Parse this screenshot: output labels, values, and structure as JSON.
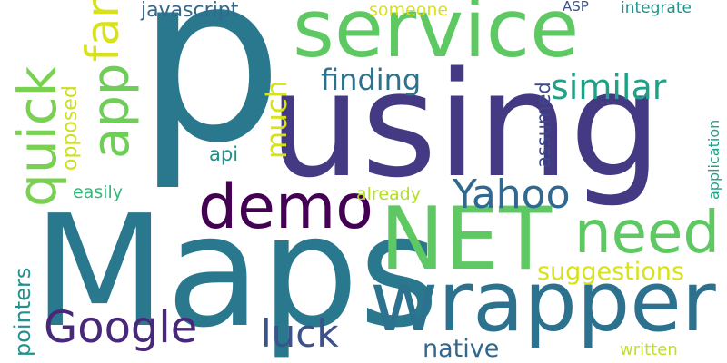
{
  "wordcloud": {
    "background": "#ffffff",
    "words": [
      {
        "text": "p",
        "color": "#2a788e"
      },
      {
        "text": "using",
        "color": "#443a83"
      },
      {
        "text": "Maps",
        "color": "#2a788e"
      },
      {
        "text": "service",
        "color": "#5ec962"
      },
      {
        "text": "NET",
        "color": "#5ec962"
      },
      {
        "text": "wrapper",
        "color": "#2c728e"
      },
      {
        "text": "demo",
        "color": "#440154"
      },
      {
        "text": "need",
        "color": "#5ec962"
      },
      {
        "text": "Yahoo",
        "color": "#31688e"
      },
      {
        "text": "Google",
        "color": "#482878"
      },
      {
        "text": "luck",
        "color": "#3b528b"
      },
      {
        "text": "similar",
        "color": "#1fa187"
      },
      {
        "text": "suggestions",
        "color": "#d8e219"
      },
      {
        "text": "native",
        "color": "#31688e"
      },
      {
        "text": "finding",
        "color": "#2c728e"
      },
      {
        "text": "javascript",
        "color": "#31688e"
      },
      {
        "text": "someone",
        "color": "#d8e219"
      },
      {
        "text": "ASP",
        "color": "#3b528b"
      },
      {
        "text": "integrate",
        "color": "#21918c"
      },
      {
        "text": "api",
        "color": "#21918c"
      },
      {
        "text": "easily",
        "color": "#35b779"
      },
      {
        "text": "already",
        "color": "#b5de2b"
      },
      {
        "text": "written",
        "color": "#c2df23"
      },
      {
        "text": "quick",
        "color": "#7ad151"
      },
      {
        "text": "app",
        "color": "#6ece58"
      },
      {
        "text": "far",
        "color": "#d8e219"
      },
      {
        "text": "opposed",
        "color": "#cddf1f"
      },
      {
        "text": "much",
        "color": "#d8e219"
      },
      {
        "text": "pointers",
        "color": "#21918c"
      },
      {
        "text": "assumed",
        "color": "#3e4989"
      },
      {
        "text": "application",
        "color": "#1fa187"
      }
    ]
  }
}
